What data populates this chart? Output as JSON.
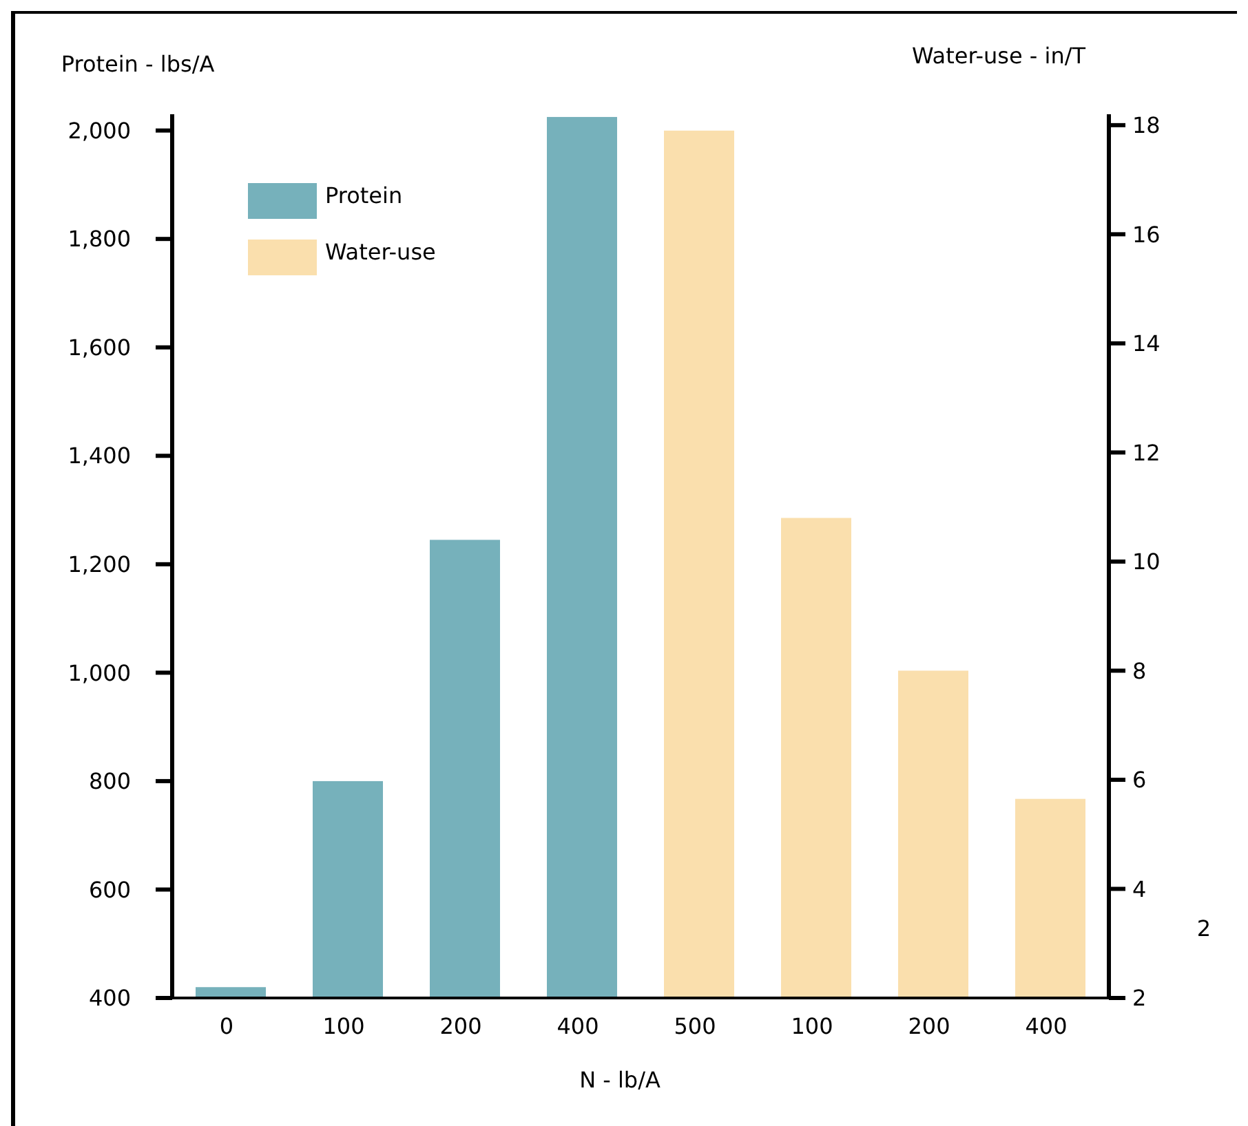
{
  "chart_data": {
    "type": "bar",
    "xlabel": "N - lb/A",
    "ylabel": "Protein - lbs/A",
    "y2label": "Water-use - in/T",
    "categories": [
      "0",
      "100",
      "200",
      "400",
      "500",
      "100",
      "200",
      "400"
    ],
    "series": [
      {
        "name": "Protein",
        "color": "#76b1bb",
        "values": [
          420,
          800,
          1245,
          2025,
          null,
          null,
          null,
          null
        ]
      },
      {
        "name": "Water-use",
        "color": "#fadfad",
        "axis": "y2",
        "values": [
          null,
          null,
          null,
          null,
          17.9,
          10.8,
          8.0,
          5.65
        ]
      }
    ],
    "ylim": [
      400,
      2030
    ],
    "yticks": [
      400,
      600,
      800,
      {
        "value": 1000,
        "label": "1,000"
      },
      {
        "value": 1200,
        "label": "1,200"
      },
      {
        "value": 1400,
        "label": "1,400"
      },
      {
        "value": 1600,
        "label": "1,600"
      },
      {
        "value": 1800,
        "label": "1,800"
      },
      {
        "value": 2000,
        "label": "2,000"
      }
    ],
    "y2lim": [
      2,
      18.2
    ],
    "y2ticks": [
      2,
      4,
      6,
      8,
      10,
      12,
      14,
      16,
      18
    ],
    "legend": "top left",
    "grid": false,
    "annotations": [
      "2"
    ]
  }
}
